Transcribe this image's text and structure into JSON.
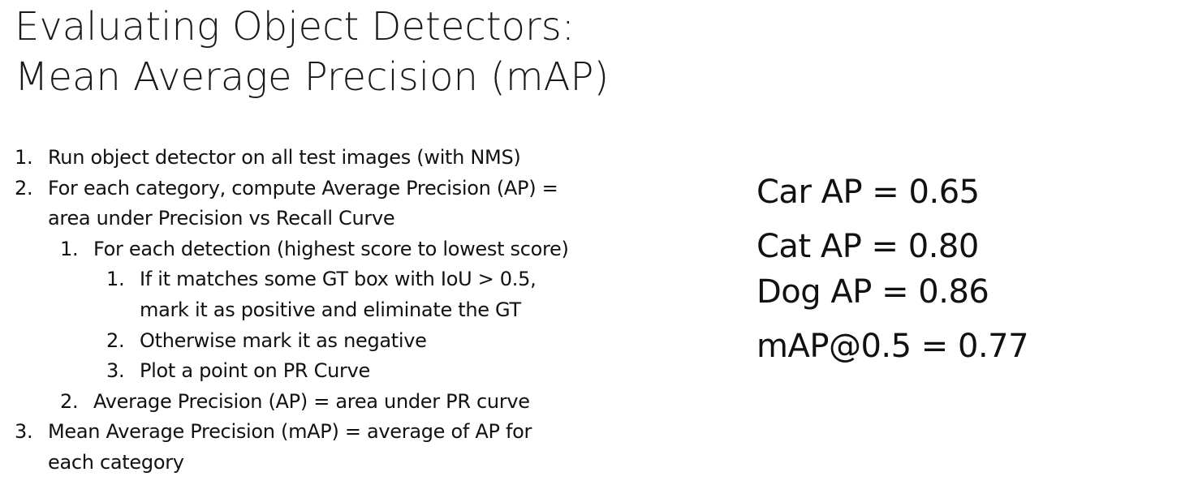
{
  "title": {
    "line1": "Evaluating Object Detectors:",
    "line2": "Mean Average Precision (mAP)"
  },
  "steps": [
    {
      "num": "1.",
      "text": "Run object detector on all test images (with NMS)"
    },
    {
      "num": "2.",
      "text": "For each category, compute Average Precision (AP) =",
      "cont": "area under Precision vs Recall Curve"
    },
    {
      "num": "1.",
      "text": "For each detection (highest score to lowest score)"
    },
    {
      "num": "1.",
      "text": "If it matches some GT box with IoU > 0.5,",
      "cont": "mark it as positive and eliminate the GT"
    },
    {
      "num": "2.",
      "text": "Otherwise mark it as negative"
    },
    {
      "num": "3.",
      "text": "Plot a point on PR Curve"
    },
    {
      "num": "2.",
      "text": "Average Precision (AP) = area under PR curve"
    },
    {
      "num": "3.",
      "text": "Mean Average Precision (mAP) = average of AP for",
      "cont": "each category"
    }
  ],
  "results": [
    {
      "text": "Car AP = 0.65"
    },
    {
      "text": "Cat AP = 0.80"
    },
    {
      "text": "Dog AP = 0.86"
    },
    {
      "text": "mAP@0.5 = 0.77"
    }
  ]
}
